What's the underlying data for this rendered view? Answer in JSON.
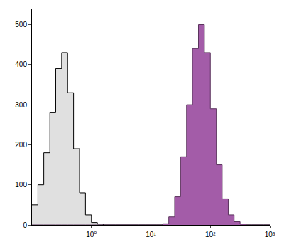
{
  "chart_data": {
    "type": "histogram",
    "bins": [
      0.1,
      0.126,
      0.158,
      0.2,
      0.251,
      0.316,
      0.398,
      0.501,
      0.631,
      0.794,
      1,
      1.26,
      1.58,
      2,
      2.51,
      3.16,
      3.98,
      5.01,
      6.31,
      7.94,
      10,
      12.6,
      15.8,
      20,
      25.1,
      31.6,
      39.8,
      50.1,
      63.1,
      79.4,
      100,
      126,
      158,
      200,
      251,
      316,
      398,
      501,
      631,
      794,
      1000
    ],
    "series": [
      {
        "color": "#e0e0e0",
        "values": [
          50,
          100,
          180,
          280,
          390,
          430,
          330,
          190,
          80,
          25,
          6,
          2,
          0,
          0,
          0,
          0,
          0,
          0,
          0,
          0,
          0,
          0,
          0,
          0,
          0,
          0,
          0,
          0,
          0,
          0,
          0,
          0,
          0,
          0,
          0,
          0,
          0,
          0,
          0,
          0
        ]
      },
      {
        "color": "#a35ca8",
        "values": [
          0,
          0,
          0,
          0,
          0,
          0,
          0,
          0,
          0,
          0,
          0,
          0,
          0,
          0,
          0,
          0,
          0,
          0,
          0,
          0,
          0,
          0,
          3,
          20,
          70,
          170,
          300,
          440,
          500,
          430,
          290,
          150,
          65,
          25,
          8,
          2,
          0,
          0,
          0,
          0
        ]
      }
    ],
    "log": "x",
    "xlim": [
      0.1,
      1000
    ],
    "xticks": [
      {
        "value": 1,
        "label": "10⁰"
      },
      {
        "value": 10,
        "label": "10¹"
      },
      {
        "value": 100,
        "label": "10²"
      },
      {
        "value": 1000,
        "label": "10³"
      }
    ],
    "ylim": [
      0,
      540
    ],
    "yticks": [
      0,
      100,
      200,
      300,
      400,
      500
    ],
    "grid": false
  }
}
